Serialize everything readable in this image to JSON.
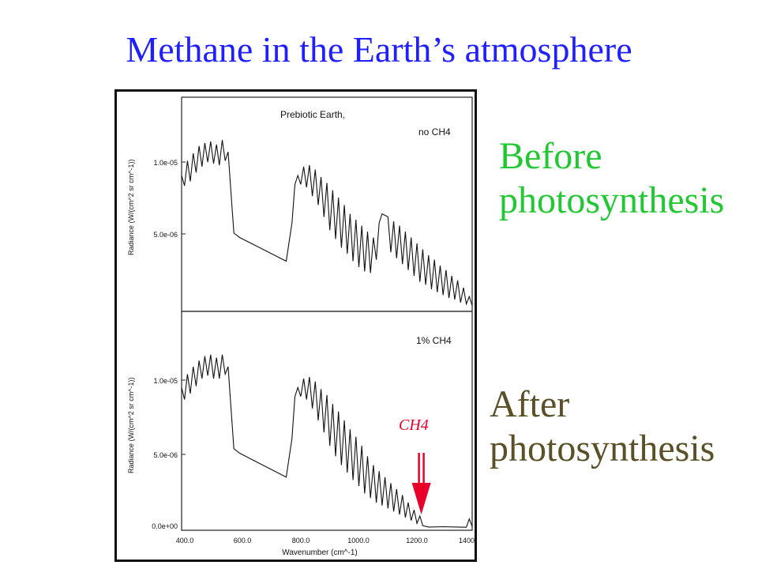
{
  "slide": {
    "title": "Methane in the Earth’s atmosphere",
    "label_before": "Before photosynthesis",
    "label_after": "After photosynthesis"
  },
  "colors": {
    "title": "#1f1fff",
    "before": "#22c833",
    "after": "#5a5028",
    "arrow": "#e8002a"
  },
  "chart_data": [
    {
      "type": "line",
      "title": "Prebiotic Earth,",
      "annotation": "no CH4",
      "ylabel": "Radiance (W/(cm^2 sr cm^-1))",
      "ylim": [
        0,
        1.45e-05
      ],
      "xlim": [
        400,
        1400
      ],
      "y_ticks": [
        "1.0e-05",
        "5.0e-06"
      ],
      "series": [
        {
          "x": [
            400,
            410,
            420,
            430,
            440,
            450,
            460,
            470,
            480,
            490,
            500,
            510,
            520,
            530,
            540,
            550,
            560,
            570,
            580,
            600,
            650,
            700,
            760,
            780,
            790,
            800,
            810,
            820,
            830,
            840,
            850,
            860,
            870,
            880,
            890,
            900,
            910,
            920,
            930,
            940,
            950,
            960,
            970,
            980,
            990,
            1000,
            1010,
            1020,
            1030,
            1040,
            1050,
            1060,
            1070,
            1080,
            1090,
            1100,
            1110,
            1120,
            1130,
            1140,
            1150,
            1160,
            1170,
            1180,
            1190,
            1200,
            1210,
            1220,
            1230,
            1240,
            1250,
            1260,
            1270,
            1280,
            1290,
            1300,
            1310,
            1320,
            1330,
            1340,
            1350,
            1360,
            1370,
            1380,
            1390,
            1400
          ],
          "y": [
            9.2e-06,
            8.5e-06,
            1.02e-05,
            8.8e-06,
            1.07e-05,
            9.4e-06,
            1.12e-05,
            9.8e-06,
            1.14e-05,
            1.01e-05,
            1.15e-05,
            1e-05,
            1.13e-05,
            9.9e-06,
            1.16e-05,
            1.02e-05,
            1.08e-05,
            8e-06,
            5.3e-06,
            5e-06,
            4.5e-06,
            4e-06,
            3.4e-06,
            6e-06,
            8.6e-06,
            9.2e-06,
            8.6e-06,
            9.8e-06,
            8.4e-06,
            9.9e-06,
            7.8e-06,
            9.6e-06,
            7.2e-06,
            9.1e-06,
            6.4e-06,
            8.7e-06,
            5.5e-06,
            8.2e-06,
            4.9e-06,
            7.7e-06,
            4.3e-06,
            7.2e-06,
            3.9e-06,
            6.6e-06,
            3.4e-06,
            6.2e-06,
            3e-06,
            5.8e-06,
            2.7e-06,
            5.4e-06,
            2.6e-06,
            5e-06,
            3.5e-06,
            6e-06,
            6.6e-06,
            6.5e-06,
            6.4e-06,
            4e-06,
            6.1e-06,
            3.6e-06,
            5.8e-06,
            3.2e-06,
            5.4e-06,
            2.8e-06,
            5e-06,
            2.4e-06,
            4.6e-06,
            2e-06,
            4.2e-06,
            1.8e-06,
            3.8e-06,
            1.5e-06,
            3.5e-06,
            1.3e-06,
            3.1e-06,
            1.1e-06,
            2.8e-06,
            9e-07,
            2.4e-06,
            8e-07,
            2.1e-06,
            6e-07,
            1.6e-06,
            5e-07,
            1e-06,
            4e-07
          ]
        }
      ]
    },
    {
      "type": "line",
      "annotation": "1% CH4",
      "xlabel": "Wavenumber (cm^-1)",
      "ylabel": "Radiance (W/(cm^2 sr cm^-1))",
      "ylim": [
        0,
        1.45e-05
      ],
      "xlim": [
        400,
        1400
      ],
      "y_ticks": [
        "1.0e-05",
        "5.0e-06",
        "0.0e+00"
      ],
      "x_ticks": [
        "400.0",
        "600.0",
        "800.0",
        "1000.0",
        "1200.0",
        "1400"
      ],
      "marker_label": "CH4",
      "marker_x": 1225,
      "series": [
        {
          "x": [
            400,
            410,
            420,
            430,
            440,
            450,
            460,
            470,
            480,
            490,
            500,
            510,
            520,
            530,
            540,
            550,
            560,
            570,
            580,
            600,
            650,
            700,
            760,
            780,
            790,
            800,
            810,
            820,
            830,
            840,
            850,
            860,
            870,
            880,
            890,
            900,
            910,
            920,
            930,
            940,
            950,
            960,
            970,
            980,
            990,
            1000,
            1010,
            1020,
            1030,
            1040,
            1050,
            1060,
            1070,
            1080,
            1090,
            1100,
            1110,
            1120,
            1130,
            1140,
            1150,
            1160,
            1170,
            1180,
            1190,
            1200,
            1210,
            1220,
            1230,
            1250,
            1300,
            1350,
            1380,
            1390,
            1400
          ],
          "y": [
            9.4e-06,
            8.6e-06,
            1.03e-05,
            9e-06,
            1.08e-05,
            9.5e-06,
            1.12e-05,
            1e-05,
            1.15e-05,
            1.02e-05,
            1.16e-05,
            1e-05,
            1.14e-05,
            1e-05,
            1.16e-05,
            1.03e-05,
            1.08e-05,
            8e-06,
            5.3e-06,
            5e-06,
            4.5e-06,
            4e-06,
            3.4e-06,
            6e-06,
            8.8e-06,
            9.4e-06,
            8.8e-06,
            1e-05,
            8.6e-06,
            1.01e-05,
            8e-06,
            9.8e-06,
            7.2e-06,
            9.3e-06,
            6.4e-06,
            8.9e-06,
            5.5e-06,
            8.3e-06,
            4.8e-06,
            7.8e-06,
            4.2e-06,
            7.2e-06,
            3.7e-06,
            6.6e-06,
            3.2e-06,
            6.1e-06,
            2.8e-06,
            5.5e-06,
            2.3e-06,
            4.8e-06,
            2e-06,
            4.2e-06,
            1.7e-06,
            3.8e-06,
            1.5e-06,
            3.4e-06,
            1.3e-06,
            3e-06,
            1.1e-06,
            2.6e-06,
            9e-07,
            2.2e-06,
            7e-07,
            1.7e-06,
            5e-07,
            1.2e-06,
            3e-07,
            8e-07,
            1.5e-07,
            6e-08,
            8e-08,
            6e-08,
            4e-08,
            6e-07,
            1e-07
          ]
        }
      ]
    }
  ]
}
